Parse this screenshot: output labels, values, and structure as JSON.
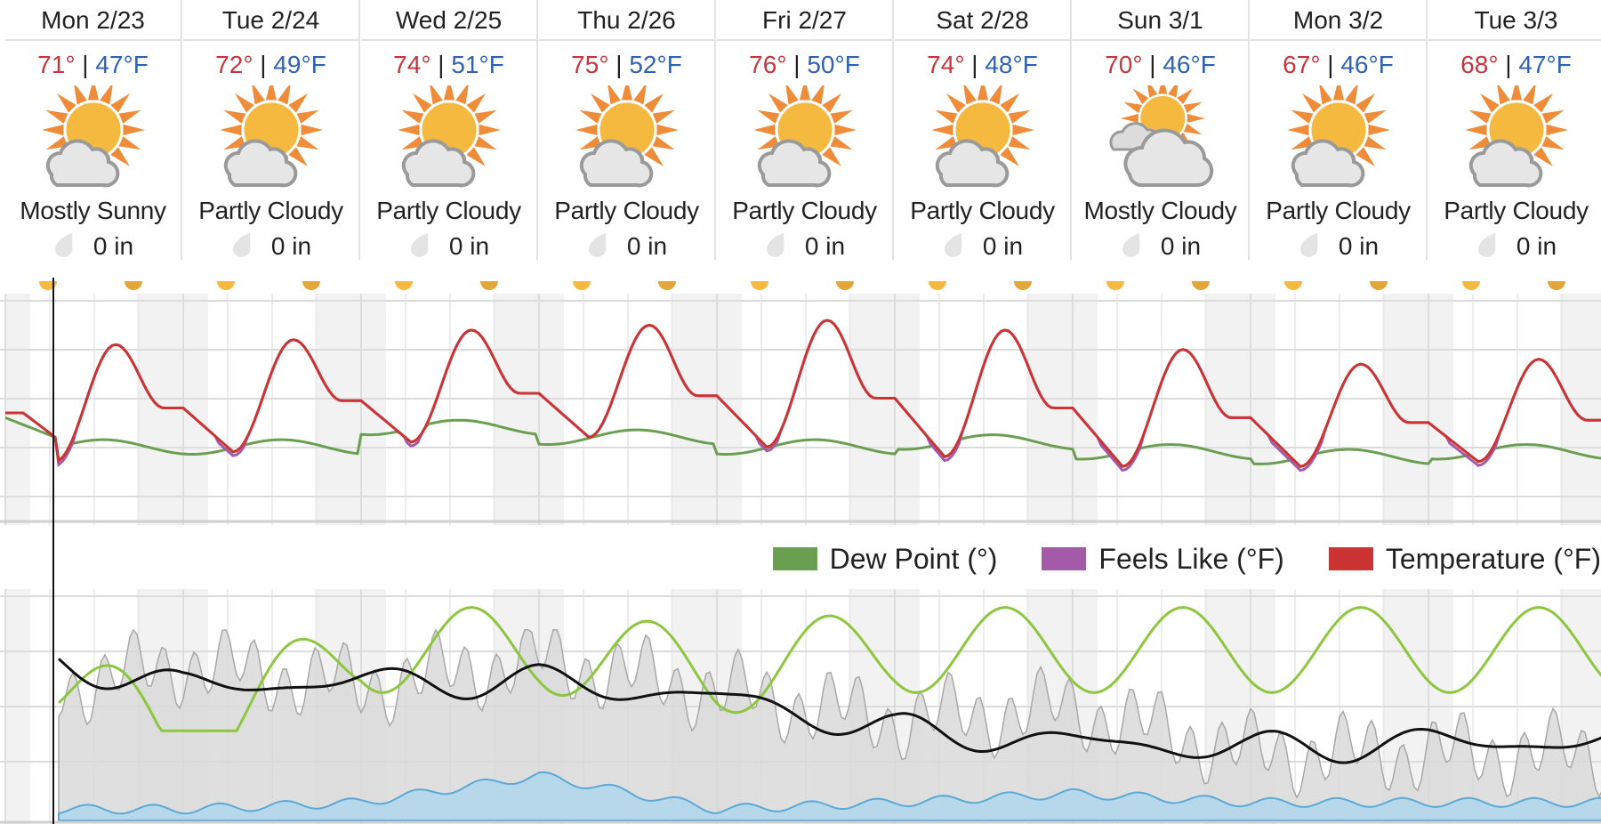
{
  "days": [
    {
      "name": "Mon 2/23",
      "high": "71°",
      "low": "47°F",
      "icon": "sun-cloud-icon",
      "condition": "Mostly Sunny",
      "precip": "0 in"
    },
    {
      "name": "Tue 2/24",
      "high": "72°",
      "low": "49°F",
      "icon": "sun-cloud-icon",
      "condition": "Partly Cloudy",
      "precip": "0 in"
    },
    {
      "name": "Wed 2/25",
      "high": "74°",
      "low": "51°F",
      "icon": "sun-cloud-icon",
      "condition": "Partly Cloudy",
      "precip": "0 in"
    },
    {
      "name": "Thu 2/26",
      "high": "75°",
      "low": "52°F",
      "icon": "sun-cloud-icon",
      "condition": "Partly Cloudy",
      "precip": "0 in"
    },
    {
      "name": "Fri 2/27",
      "high": "76°",
      "low": "50°F",
      "icon": "sun-cloud-icon",
      "condition": "Partly Cloudy",
      "precip": "0 in"
    },
    {
      "name": "Sat 2/28",
      "high": "74°",
      "low": "48°F",
      "icon": "sun-cloud-icon",
      "condition": "Partly Cloudy",
      "precip": "0 in"
    },
    {
      "name": "Sun 3/1",
      "high": "70°",
      "low": "46°F",
      "icon": "cloud-sun-icon",
      "condition": "Mostly Cloudy",
      "precip": "0 in"
    },
    {
      "name": "Mon 3/2",
      "high": "67°",
      "low": "46°F",
      "icon": "sun-cloud-icon",
      "condition": "Partly Cloudy",
      "precip": "0 in"
    },
    {
      "name": "Tue 3/3",
      "high": "68°",
      "low": "47°F",
      "icon": "sun-cloud-icon",
      "condition": "Partly Cloudy",
      "precip": "0 in"
    }
  ],
  "legend": {
    "dew_point": "Dew Point (°)",
    "feels_like": "Feels Like (°F)",
    "temperature": "Temperature (°F)"
  },
  "colors": {
    "high": "#c8343b",
    "low": "#2f62b5",
    "temperature": "#cc3333",
    "feels_like": "#a35ba8",
    "dew_point": "#6a9f52",
    "humidity": "#8dc63f",
    "pressure": "#111111",
    "cloud_cover": "#d9d9d9",
    "precip_chance": "#5ba9d6",
    "sun": "#f6b940",
    "sun_rays": "#ef8c39"
  },
  "chart_data": [
    {
      "type": "line",
      "x": [
        "Mon 2/23",
        "Tue 2/24",
        "Wed 2/25",
        "Thu 2/26",
        "Fri 2/27",
        "Sat 2/28",
        "Sun 3/1",
        "Mon 3/2",
        "Tue 3/3"
      ],
      "series": [
        {
          "name": "Temperature (°F)",
          "highs": [
            71,
            72,
            74,
            75,
            76,
            74,
            70,
            67,
            68
          ],
          "lows": [
            47,
            49,
            51,
            52,
            50,
            48,
            46,
            46,
            47
          ]
        },
        {
          "name": "Dew Point (°)",
          "values": [
            50,
            50,
            54,
            52,
            50,
            51,
            49,
            48,
            49
          ]
        }
      ],
      "grid": true,
      "legend": "top-right"
    },
    {
      "type": "area",
      "x": [
        "Mon 2/23",
        "Tue 2/24",
        "Wed 2/25",
        "Thu 2/26",
        "Fri 2/27",
        "Sat 2/28",
        "Sun 3/1",
        "Mon 3/2",
        "Tue 3/3"
      ],
      "series": [
        {
          "values": [
            55,
            70,
            60,
            72,
            58,
            45,
            50,
            30,
            30
          ]
        },
        {
          "values": [
            90,
            55,
            95,
            95,
            85,
            95,
            95,
            95,
            95
          ]
        },
        {
          "values": [
            75,
            60,
            62,
            62,
            55,
            40,
            35,
            32,
            35
          ]
        },
        {
          "values": [
            5,
            5,
            8,
            20,
            5,
            8,
            12,
            8,
            8
          ]
        }
      ],
      "grid": true
    }
  ]
}
